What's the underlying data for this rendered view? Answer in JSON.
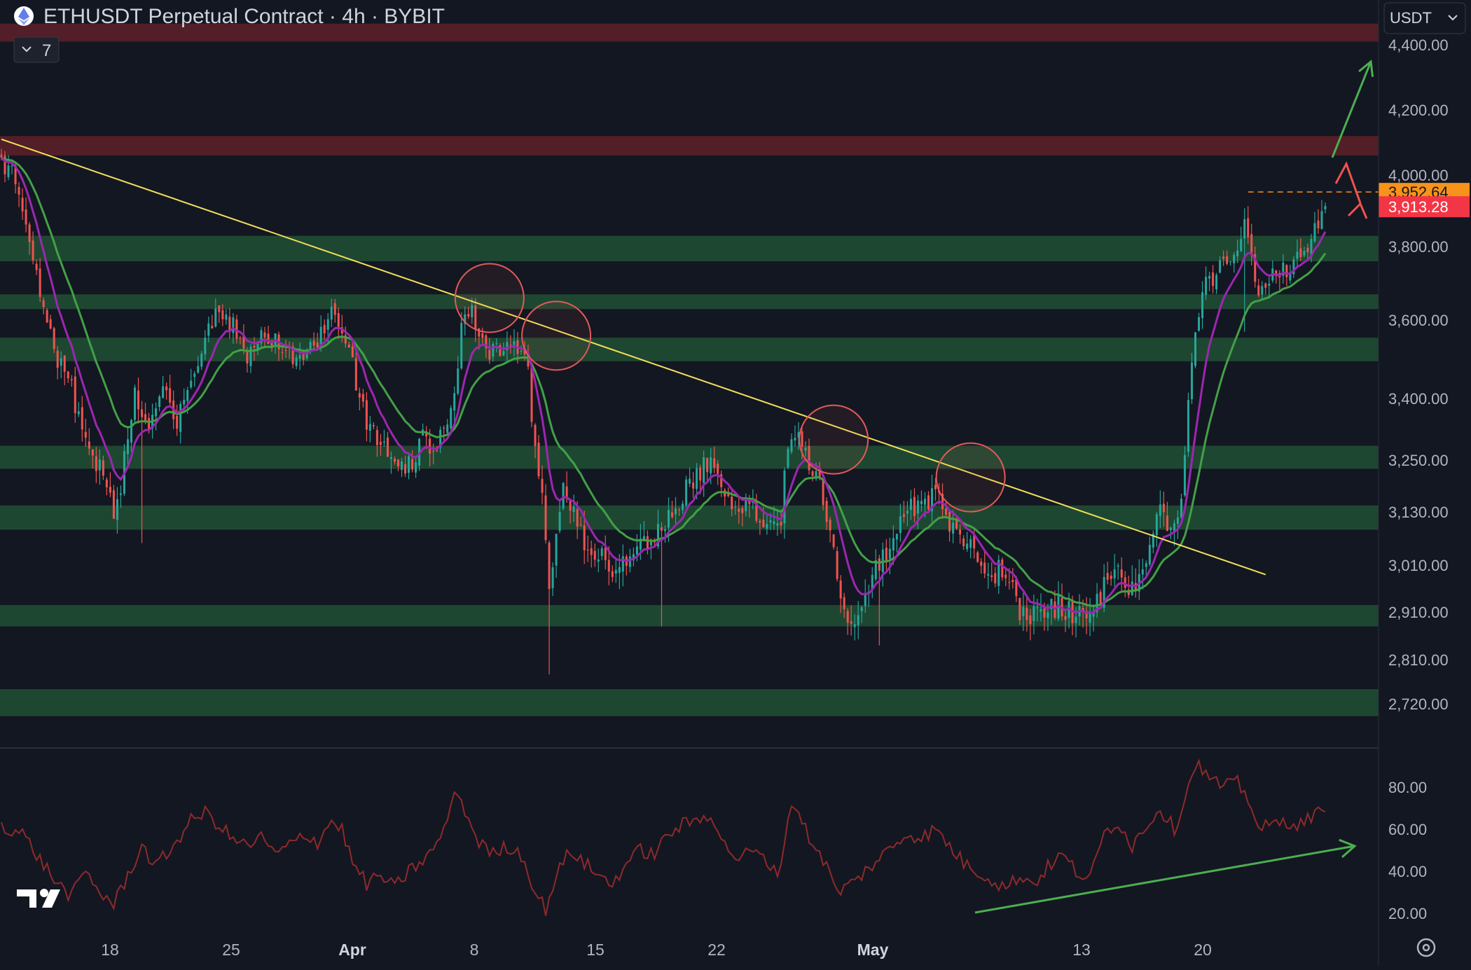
{
  "header": {
    "title": "ETHUSDT Perpetual Contract · 4h · BYBIT",
    "indicator_count": "7",
    "currency_select": "USDT"
  },
  "price_axis": {
    "ticks": [
      "4,400.00",
      "4,200.00",
      "4,000.00",
      "3,800.00",
      "3,600.00",
      "3,400.00",
      "3,250.00",
      "3,130.00",
      "3,010.00",
      "2,910.00",
      "2,810.00",
      "2,720.00"
    ],
    "last_price_label": "3,913.28",
    "prev_high_label": "3,952.64"
  },
  "rsi_axis": {
    "ticks": [
      "80.00",
      "60.00",
      "40.00",
      "20.00"
    ]
  },
  "time_axis": {
    "ticks": [
      "18",
      "25",
      "Apr",
      "8",
      "15",
      "22",
      "May",
      "13",
      "20"
    ]
  },
  "colors": {
    "background": "#131722",
    "bull": "#26a69a",
    "bear": "#ef5350",
    "resistance_zone": "#5a1f28",
    "support_zone": "#1f4a33",
    "trendline": "#f2e05a",
    "ema_fast": "#9c27b0",
    "ema_slow": "#43a047",
    "rsi_line": "#8e2a2a",
    "arrow_green": "#4caf50",
    "arrow_red": "#ef5350",
    "last_price_bg": "#f23645",
    "prev_high_bg": "#f7931a"
  },
  "icons": {
    "logo": "tradingview-logo-icon",
    "settings": "gear-icon",
    "symbol": "ethereum-icon",
    "collapse": "chevron-down-icon",
    "dropdown": "chevron-down-icon"
  },
  "chart_data": {
    "type": "candlestick",
    "symbol": "ETHUSDT",
    "interval": "4h",
    "exchange": "BYBIT",
    "price_range": [
      2650,
      4480
    ],
    "rsi_range": [
      10,
      95
    ],
    "resistance_zones": [
      [
        4410,
        4465
      ],
      [
        4060,
        4120
      ]
    ],
    "support_zones": [
      [
        3760,
        3830
      ],
      [
        3630,
        3670
      ],
      [
        3495,
        3555
      ],
      [
        3230,
        3285
      ],
      [
        3090,
        3145
      ],
      [
        2880,
        2925
      ],
      [
        2695,
        2750
      ]
    ],
    "close_path": [
      [
        0,
        4040
      ],
      [
        4,
        3990
      ],
      [
        8,
        3800
      ],
      [
        12,
        3620
      ],
      [
        16,
        3500
      ],
      [
        20,
        3420
      ],
      [
        24,
        3300
      ],
      [
        28,
        3230
      ],
      [
        32,
        3140
      ],
      [
        34,
        3200
      ],
      [
        38,
        3420
      ],
      [
        42,
        3330
      ],
      [
        46,
        3420
      ],
      [
        50,
        3330
      ],
      [
        54,
        3450
      ],
      [
        58,
        3560
      ],
      [
        62,
        3640
      ],
      [
        66,
        3580
      ],
      [
        70,
        3480
      ],
      [
        74,
        3580
      ],
      [
        78,
        3540
      ],
      [
        82,
        3520
      ],
      [
        86,
        3500
      ],
      [
        90,
        3540
      ],
      [
        94,
        3620
      ],
      [
        97,
        3590
      ],
      [
        100,
        3480
      ],
      [
        104,
        3330
      ],
      [
        108,
        3280
      ],
      [
        112,
        3250
      ],
      [
        116,
        3240
      ],
      [
        120,
        3300
      ],
      [
        124,
        3280
      ],
      [
        128,
        3350
      ],
      [
        130,
        3500
      ],
      [
        132,
        3640
      ],
      [
        134,
        3620
      ],
      [
        136,
        3540
      ],
      [
        140,
        3520
      ],
      [
        144,
        3540
      ],
      [
        148,
        3500
      ],
      [
        150,
        3480
      ],
      [
        152,
        3260
      ],
      [
        154,
        3150
      ],
      [
        156,
        2960
      ],
      [
        158,
        3070
      ],
      [
        160,
        3180
      ],
      [
        162,
        3130
      ],
      [
        166,
        3070
      ],
      [
        170,
        3040
      ],
      [
        174,
        2970
      ],
      [
        178,
        3020
      ],
      [
        182,
        3060
      ],
      [
        186,
        3080
      ],
      [
        190,
        3120
      ],
      [
        194,
        3170
      ],
      [
        198,
        3210
      ],
      [
        202,
        3260
      ],
      [
        206,
        3180
      ],
      [
        210,
        3130
      ],
      [
        214,
        3140
      ],
      [
        218,
        3110
      ],
      [
        222,
        3120
      ],
      [
        224,
        3300
      ],
      [
        226,
        3320
      ],
      [
        230,
        3250
      ],
      [
        234,
        3170
      ],
      [
        238,
        2980
      ],
      [
        242,
        2890
      ],
      [
        246,
        2960
      ],
      [
        250,
        3010
      ],
      [
        254,
        3070
      ],
      [
        258,
        3130
      ],
      [
        262,
        3150
      ],
      [
        266,
        3170
      ],
      [
        270,
        3100
      ],
      [
        274,
        3060
      ],
      [
        278,
        3030
      ],
      [
        282,
        2990
      ],
      [
        286,
        3000
      ],
      [
        290,
        2920
      ],
      [
        294,
        2905
      ],
      [
        298,
        2930
      ],
      [
        302,
        2920
      ],
      [
        306,
        2900
      ],
      [
        310,
        2890
      ],
      [
        314,
        2970
      ],
      [
        318,
        2990
      ],
      [
        322,
        2950
      ],
      [
        326,
        3030
      ],
      [
        330,
        3120
      ],
      [
        334,
        3100
      ],
      [
        336,
        3140
      ],
      [
        338,
        3390
      ],
      [
        340,
        3570
      ],
      [
        342,
        3700
      ],
      [
        346,
        3720
      ],
      [
        350,
        3780
      ],
      [
        354,
        3850
      ],
      [
        358,
        3680
      ],
      [
        362,
        3720
      ],
      [
        366,
        3740
      ],
      [
        370,
        3770
      ],
      [
        374,
        3840
      ],
      [
        377,
        3913
      ]
    ],
    "candle_count": 378,
    "rsi_path": [
      [
        0,
        62
      ],
      [
        6,
        58
      ],
      [
        10,
        48
      ],
      [
        16,
        34
      ],
      [
        20,
        28
      ],
      [
        24,
        40
      ],
      [
        28,
        30
      ],
      [
        32,
        24
      ],
      [
        36,
        38
      ],
      [
        40,
        52
      ],
      [
        44,
        42
      ],
      [
        48,
        50
      ],
      [
        54,
        64
      ],
      [
        58,
        68
      ],
      [
        62,
        62
      ],
      [
        66,
        55
      ],
      [
        70,
        52
      ],
      [
        74,
        56
      ],
      [
        78,
        48
      ],
      [
        82,
        52
      ],
      [
        86,
        58
      ],
      [
        90,
        54
      ],
      [
        94,
        64
      ],
      [
        97,
        60
      ],
      [
        100,
        44
      ],
      [
        104,
        34
      ],
      [
        108,
        38
      ],
      [
        112,
        32
      ],
      [
        116,
        40
      ],
      [
        120,
        45
      ],
      [
        124,
        52
      ],
      [
        128,
        70
      ],
      [
        130,
        79
      ],
      [
        132,
        68
      ],
      [
        136,
        54
      ],
      [
        140,
        48
      ],
      [
        144,
        52
      ],
      [
        148,
        48
      ],
      [
        150,
        40
      ],
      [
        152,
        30
      ],
      [
        155,
        22
      ],
      [
        158,
        38
      ],
      [
        162,
        50
      ],
      [
        166,
        44
      ],
      [
        170,
        38
      ],
      [
        174,
        34
      ],
      [
        178,
        44
      ],
      [
        182,
        50
      ],
      [
        186,
        48
      ],
      [
        190,
        58
      ],
      [
        194,
        62
      ],
      [
        198,
        64
      ],
      [
        202,
        68
      ],
      [
        206,
        52
      ],
      [
        210,
        46
      ],
      [
        214,
        50
      ],
      [
        218,
        44
      ],
      [
        222,
        40
      ],
      [
        224,
        68
      ],
      [
        226,
        72
      ],
      [
        230,
        56
      ],
      [
        234,
        46
      ],
      [
        238,
        30
      ],
      [
        242,
        34
      ],
      [
        246,
        40
      ],
      [
        250,
        46
      ],
      [
        254,
        52
      ],
      [
        258,
        58
      ],
      [
        262,
        56
      ],
      [
        266,
        60
      ],
      [
        270,
        52
      ],
      [
        274,
        44
      ],
      [
        278,
        40
      ],
      [
        282,
        36
      ],
      [
        286,
        32
      ],
      [
        290,
        38
      ],
      [
        294,
        34
      ],
      [
        298,
        42
      ],
      [
        302,
        48
      ],
      [
        306,
        40
      ],
      [
        310,
        36
      ],
      [
        314,
        58
      ],
      [
        318,
        64
      ],
      [
        322,
        52
      ],
      [
        326,
        62
      ],
      [
        330,
        70
      ],
      [
        334,
        60
      ],
      [
        338,
        80
      ],
      [
        340,
        92
      ],
      [
        344,
        84
      ],
      [
        348,
        80
      ],
      [
        352,
        82
      ],
      [
        356,
        72
      ],
      [
        358,
        60
      ],
      [
        362,
        62
      ],
      [
        366,
        64
      ],
      [
        370,
        62
      ],
      [
        374,
        68
      ],
      [
        377,
        66
      ]
    ],
    "trendline": [
      [
        0,
        4110
      ],
      [
        360,
        2990
      ]
    ],
    "rejection_circles": [
      {
        "i": 139,
        "price": 3660
      },
      {
        "i": 158,
        "price": 3560
      },
      {
        "i": 237,
        "price": 3300
      },
      {
        "i": 276,
        "price": 3210
      }
    ],
    "arrows": [
      {
        "color": "green",
        "from": [
          378,
          4030
        ],
        "to": [
          392,
          4460
        ]
      },
      {
        "color": "red",
        "from": [
          386,
          3850
        ],
        "to": [
          381,
          4010
        ]
      },
      {
        "color": "red",
        "from": [
          381,
          4010
        ],
        "to": [
          378,
          3850
        ]
      },
      {
        "color": "green-rsi",
        "from": [
          278,
          18
        ],
        "to": [
          390,
          54
        ]
      }
    ],
    "prev_high_level": 3952.64,
    "last_price": 3913.28,
    "rsi_range_labels": [
      "80.00",
      "60.00",
      "40.00",
      "20.00"
    ],
    "time_labels": [
      "18",
      "25",
      "Apr",
      "8",
      "15",
      "22",
      "May",
      "13",
      "20"
    ]
  }
}
